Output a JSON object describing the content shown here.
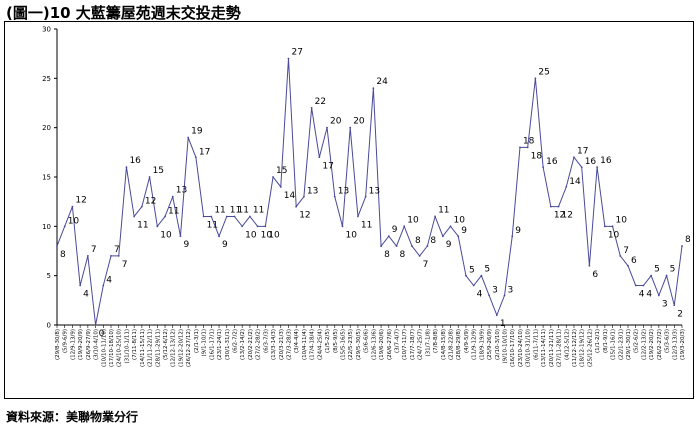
{
  "title": "(圖一)10 大藍籌屋苑週末交投走勢",
  "source": "資料來源：美聯物業分行",
  "chart_data": {
    "type": "line",
    "ylim": [
      0,
      30
    ],
    "yticks": [
      0,
      5,
      10,
      15,
      20,
      25,
      30
    ],
    "grid": false,
    "legend": "none",
    "series_color": "#4a4a9a",
    "series": [
      {
        "values": [
          8,
          10,
          12,
          4,
          7,
          0,
          4,
          7,
          7,
          16,
          11,
          12,
          15,
          10,
          11,
          13,
          9,
          19,
          17,
          11,
          11,
          9,
          11,
          11,
          10,
          11,
          10,
          10,
          15,
          14,
          27,
          12,
          13,
          22,
          17,
          20,
          13,
          10,
          20,
          11,
          13,
          24,
          8,
          9,
          8,
          10,
          8,
          7,
          8,
          11,
          9,
          10,
          9,
          5,
          4,
          5,
          3,
          1,
          3,
          9,
          18,
          18,
          25,
          16,
          12,
          12,
          14,
          17,
          16,
          6,
          16,
          10,
          10,
          7,
          6,
          4,
          4,
          5,
          3,
          5,
          2,
          8
        ],
        "labels": [
          "8",
          "10",
          "12",
          "4",
          "7",
          "0",
          "4",
          "7",
          "7",
          "16",
          "11",
          "12",
          "15",
          "10",
          "11",
          "13",
          "9",
          "19",
          "17",
          "11",
          "11",
          "9",
          "11",
          "11",
          "10",
          "11",
          "10",
          "10",
          "15",
          "14",
          "27",
          "12",
          "13",
          "22",
          "17",
          "20",
          "13",
          "10",
          "20",
          "11",
          "13",
          "24",
          "8",
          "9",
          "8",
          "10",
          "8",
          "7",
          "8",
          "11",
          "9",
          "10",
          "9",
          "5",
          "4",
          "5",
          "3",
          "1",
          "3",
          "9",
          "18",
          "18",
          "25",
          "16",
          "12",
          "12",
          "14",
          "17",
          "16",
          "6",
          "16",
          "10",
          "10",
          "7",
          "6",
          "4",
          "4",
          "5",
          "3",
          "5",
          "2",
          "8"
        ]
      }
    ],
    "categories": [
      "(29/8-30/8)",
      "(5/9-6/9)",
      "(12/9-13/9)",
      "(19/9-20/9)",
      "(26/9-27/9)",
      "(3/10-4/10)",
      "(10/10-11/10)",
      "(17/10-18/10)",
      "(24/10-25/10)",
      "(31/10-1/11)",
      "(7/11-8/11)",
      "(14/11-15/11)",
      "(21/11-22/11)",
      "(28/11-29/11)",
      "(5/12-6/12)",
      "(12/12-13/12)",
      "(19/12-20/12)",
      "(26/12-27/12)",
      "(2/1-3/1)",
      "(9/1-10/1)",
      "(16/1-17/1)",
      "(23/1-24/1)",
      "(30/1-31/1)",
      "(6/2-7/2)",
      "(13/2-14/2)",
      "(20/2-21/2)",
      "(27/2-28/2)",
      "(6/3-7/3)",
      "(13/3-14/3)",
      "(20/3-21/3)",
      "(27/3-28/3)",
      "(3/4-4/4)",
      "(10/4-11/4)",
      "(17/4-18/4)",
      "(24/4-25/4)",
      "(1/5-2/5)",
      "(8/5-9/5)",
      "(15/5-16/5)",
      "(22/5-23/5)",
      "(29/5-30/5)",
      "(5/6-6/6)",
      "(12/6-13/6)",
      "(19/6-20/6)",
      "(26/6-27/6)",
      "(3/7-4/7)",
      "(10/7-11/7)",
      "(17/7-18/7)",
      "(24/7-25/7)",
      "(31/7-1/8)",
      "(7/8-8/8)",
      "(14/8-15/8)",
      "(21/8-22/8)",
      "(28/8-29/8)",
      "(4/9-5/9)",
      "(11/9-12/9)",
      "(18/9-19/9)",
      "(25/9-26/9)",
      "(2/10-3/10)",
      "(9/10-10/10)",
      "(16/10-17/10)",
      "(23/10-24/10)",
      "(30/10-31/10)",
      "(6/11-7/11)",
      "(13/11-14/11)",
      "(20/11-21/11)",
      "(27/11-28/11)",
      "(4/12-5/12)",
      "(11/12-12/12)",
      "(18/12-19/12)",
      "(25/12-26/12)",
      "(1/1-2/1)",
      "(8/1-9/1)",
      "(15/1-16/1)",
      "(22/1-23/1)",
      "(29/1-30/1)",
      "(5/2-6/2)",
      "(12/2-13/2)",
      "(19/2-20/2)",
      "(26/2-27/2)",
      "(5/3-6/3)",
      "(12/3-13/3)",
      "(19/3-20/3)"
    ]
  }
}
